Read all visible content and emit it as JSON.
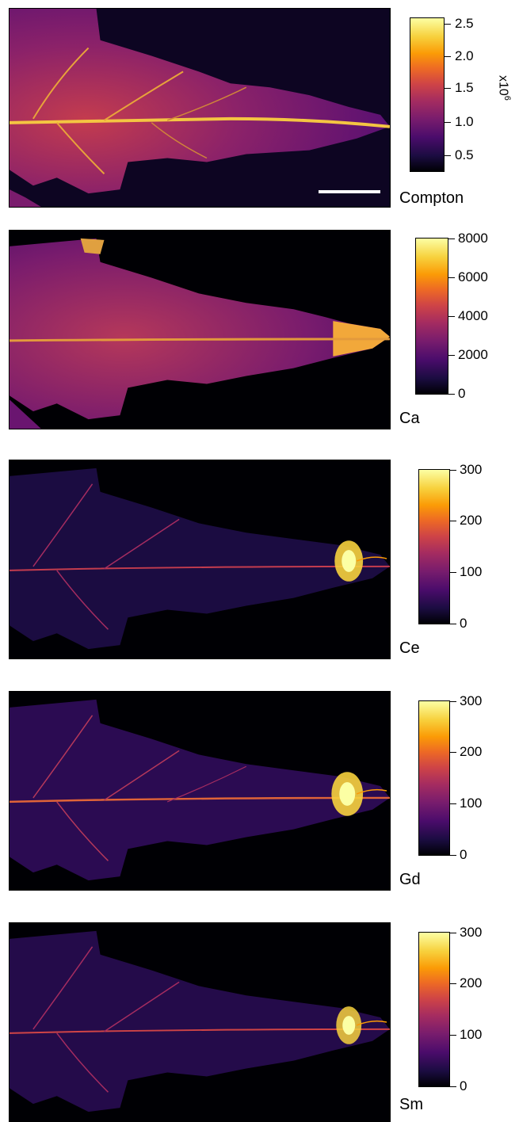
{
  "panels": [
    {
      "element": "Compton",
      "ticks": [
        "2.5",
        "2.0",
        "1.5",
        "1.0",
        "0.5"
      ],
      "multiplier": "x10",
      "exponent": "6"
    },
    {
      "element": "Ca",
      "ticks": [
        "8000",
        "6000",
        "4000",
        "2000",
        "0"
      ]
    },
    {
      "element": "Ce",
      "ticks": [
        "300",
        "200",
        "100",
        "0"
      ]
    },
    {
      "element": "Gd",
      "ticks": [
        "300",
        "200",
        "100",
        "0"
      ]
    },
    {
      "element": "Sm",
      "ticks": [
        "300",
        "200",
        "100",
        "0"
      ]
    }
  ],
  "colormap": "inferno"
}
